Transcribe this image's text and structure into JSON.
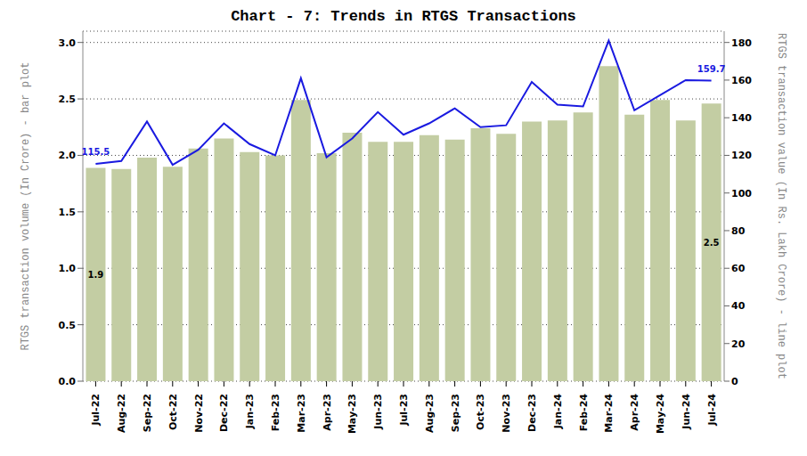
{
  "chart_data": {
    "type": "bar",
    "title": "Chart - 7: Trends in RTGS Transactions",
    "categories": [
      "Jul-22",
      "Aug-22",
      "Sep-22",
      "Oct-22",
      "Nov-22",
      "Dec-22",
      "Jan-23",
      "Feb-23",
      "Mar-23",
      "Apr-23",
      "May-23",
      "Jun-23",
      "Jul-23",
      "Aug-23",
      "Sep-23",
      "Oct-23",
      "Nov-23",
      "Dec-23",
      "Jan-24",
      "Feb-24",
      "Mar-24",
      "Apr-24",
      "May-24",
      "Jun-24",
      "Jul-24"
    ],
    "y_label": "RTGS transaction volume (In Crore) - bar plot",
    "y2_label": "RTGS transaction value (In Rs. Lakh Crore) - line plot",
    "series": [
      {
        "type": "bar",
        "axis": "y",
        "color": "#c3cda3",
        "values": [
          1.89,
          1.88,
          1.98,
          1.9,
          2.06,
          2.15,
          2.03,
          2.0,
          2.49,
          2.02,
          2.2,
          2.12,
          2.12,
          2.18,
          2.14,
          2.24,
          2.19,
          2.3,
          2.31,
          2.38,
          2.79,
          2.36,
          2.49,
          2.31,
          2.46
        ]
      },
      {
        "type": "line",
        "axis": "y2",
        "color": "#1a1ae0",
        "values": [
          115.5,
          117,
          138,
          115,
          123,
          137,
          126,
          120,
          161,
          119,
          129,
          143,
          131,
          137,
          145,
          135,
          136,
          159,
          147,
          146,
          181,
          144,
          152,
          160,
          159.7
        ]
      }
    ],
    "annotations": [
      {
        "category": "Jul-22",
        "text": "115.5",
        "axis": "y2"
      },
      {
        "category": "Jul-24",
        "text": "159.7",
        "axis": "y2"
      },
      {
        "category": "Jul-22",
        "text": "1.9",
        "axis": "y"
      },
      {
        "category": "Jul-24",
        "text": "2.5",
        "axis": "y"
      }
    ],
    "ylim": [
      0,
      3.1
    ],
    "yticks": [
      {
        "value": 0,
        "label": "0.0"
      },
      0.5,
      {
        "value": 1,
        "label": "1.0"
      },
      1.5,
      {
        "value": 2,
        "label": "2.0"
      },
      2.5,
      {
        "value": 3,
        "label": "3.0"
      }
    ],
    "y2lim": [
      0,
      186
    ],
    "y2ticks": [
      0,
      20,
      40,
      60,
      80,
      100,
      120,
      140,
      160,
      180
    ],
    "grid": true
  }
}
